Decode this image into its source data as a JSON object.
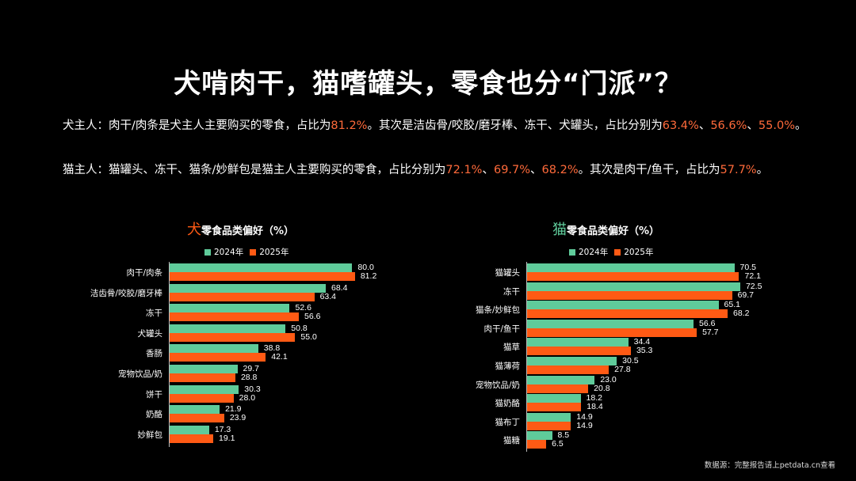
{
  "title": "犬啃肉干，猫嗜罐头，零食也分“门派”？",
  "paragraphs": [
    {
      "parts": [
        {
          "text": "犬主人：肉干/肉条是犬主人主要购买的零食，占比为",
          "hl": false
        },
        {
          "text": "81.2%",
          "hl": true
        },
        {
          "text": "。其次是洁齿骨/咬胶/磨牙棒、冻干、犬罐头，占比分别为",
          "hl": false
        },
        {
          "text": "63.4%",
          "hl": true
        },
        {
          "text": "、",
          "hl": false
        },
        {
          "text": "56.6%",
          "hl": true
        },
        {
          "text": "、",
          "hl": false
        },
        {
          "text": "55.0%",
          "hl": true
        },
        {
          "text": "。",
          "hl": false
        }
      ]
    },
    {
      "parts": [
        {
          "text": "猫主人：猫罐头、冻干、猫条/妙鲜包是猫主人主要购买的零食，占比分别为",
          "hl": false
        },
        {
          "text": "72.1%",
          "hl": true
        },
        {
          "text": "、",
          "hl": false
        },
        {
          "text": "69.7%",
          "hl": true
        },
        {
          "text": "、",
          "hl": false
        },
        {
          "text": "68.2%",
          "hl": true
        },
        {
          "text": "。其次是肉干/鱼干，占比为",
          "hl": false
        },
        {
          "text": "57.7%",
          "hl": true
        },
        {
          "text": "。",
          "hl": false
        }
      ]
    }
  ],
  "colors": {
    "series_2024": "#5fcb9a",
    "series_2025": "#ff5a14",
    "highlight_text": "#ff6a3a",
    "dog_icon": "#ff5a14",
    "cat_icon": "#5fcb9a",
    "background": "#000000"
  },
  "source": "数据源：完整报告请上petdata.cn查看",
  "chart_data": [
    {
      "type": "bar",
      "orientation": "horizontal",
      "title_prefix": "犬",
      "title": "零食品类偏好（%）",
      "legend": [
        "2024年",
        "2025年"
      ],
      "legend_position": "top",
      "grid": false,
      "categories": [
        "肉干/肉条",
        "洁齿骨/咬胶/磨牙棒",
        "冻干",
        "犬罐头",
        "香肠",
        "宠物饮品/奶",
        "饼干",
        "奶酪",
        "妙鲜包"
      ],
      "series": [
        {
          "name": "2024年",
          "values": [
            80.0,
            68.4,
            52.6,
            50.8,
            38.8,
            29.7,
            30.3,
            21.9,
            17.3
          ]
        },
        {
          "name": "2025年",
          "values": [
            81.2,
            63.4,
            56.6,
            55.0,
            42.1,
            28.8,
            28.0,
            23.9,
            19.1
          ]
        }
      ],
      "xlabel": "",
      "ylabel": "",
      "xlim": [
        0,
        85
      ]
    },
    {
      "type": "bar",
      "orientation": "horizontal",
      "title_prefix": "猫",
      "title": "零食品类偏好（%）",
      "legend": [
        "2024年",
        "2025年"
      ],
      "legend_position": "top",
      "grid": false,
      "categories": [
        "猫罐头",
        "冻干",
        "猫条/妙鲜包",
        "肉干/鱼干",
        "猫草",
        "猫薄荷",
        "宠物饮品/奶",
        "猫奶酪",
        "猫布丁",
        "猫糖"
      ],
      "series": [
        {
          "name": "2024年",
          "values": [
            70.5,
            72.5,
            65.1,
            56.6,
            34.4,
            30.5,
            23.0,
            18.2,
            14.9,
            8.5
          ]
        },
        {
          "name": "2025年",
          "values": [
            72.1,
            69.7,
            68.2,
            57.7,
            35.3,
            27.8,
            20.8,
            18.4,
            14.9,
            6.5
          ]
        }
      ],
      "xlabel": "",
      "ylabel": "",
      "xlim": [
        0,
        76
      ]
    }
  ]
}
